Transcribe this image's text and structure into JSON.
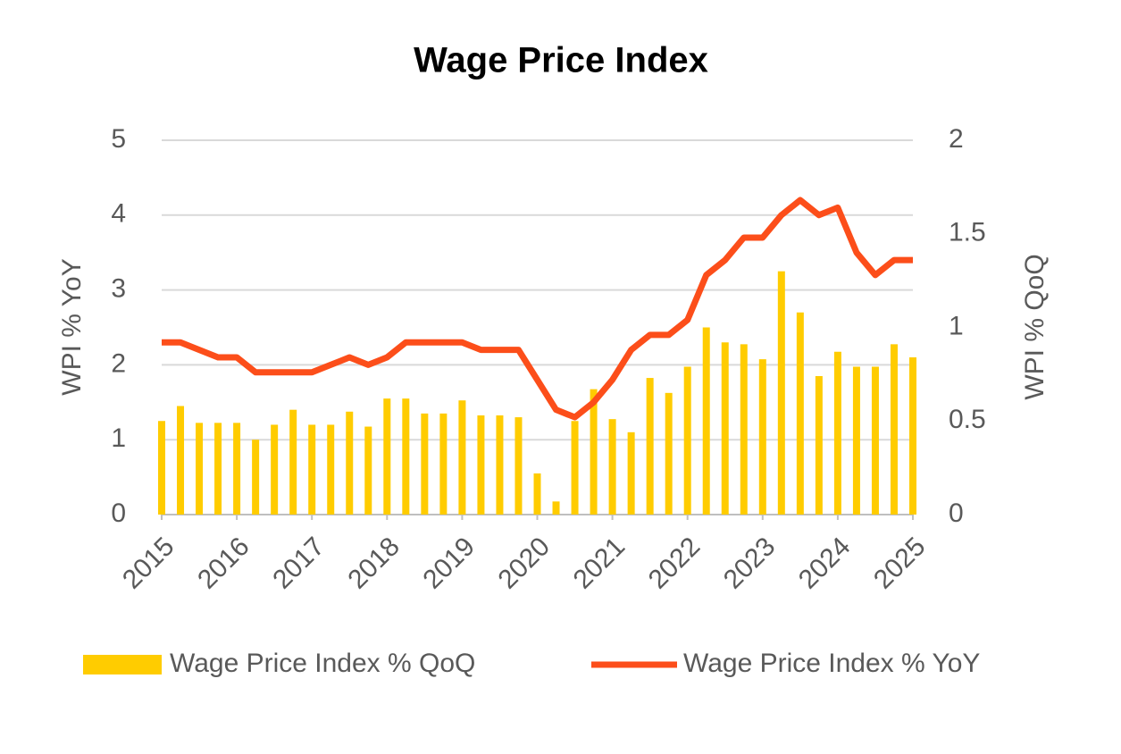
{
  "chart_data": {
    "type": "combo",
    "title": "Wage Price Index",
    "categories": [
      "2015",
      null,
      null,
      null,
      "2016",
      null,
      null,
      null,
      "2017",
      null,
      null,
      null,
      "2018",
      null,
      null,
      null,
      "2019",
      null,
      null,
      null,
      "2020",
      null,
      null,
      null,
      "2021",
      null,
      null,
      null,
      "2022",
      null,
      null,
      null,
      "2023",
      null,
      null,
      null,
      "2024",
      null,
      null,
      null,
      "2025"
    ],
    "y_label": "WPI % YoY",
    "y2_label": "WPI % QoQ",
    "ylim": [
      0,
      5
    ],
    "yticks": [
      0,
      1,
      2,
      3,
      4,
      5
    ],
    "y2lim": [
      0,
      2
    ],
    "y2ticks": [
      0,
      0.5,
      1,
      1.5,
      2
    ],
    "grid": true,
    "legend": "bottom",
    "series": [
      {
        "name": "Wage Price Index % QoQ",
        "type": "bar",
        "axis": "y2",
        "color": "#ffcc00",
        "values": [
          0.5,
          0.58,
          0.49,
          0.49,
          0.49,
          0.4,
          0.48,
          0.56,
          0.48,
          0.48,
          0.55,
          0.47,
          0.62,
          0.62,
          0.54,
          0.54,
          0.61,
          0.53,
          0.53,
          0.52,
          0.22,
          0.07,
          0.5,
          0.67,
          0.51,
          0.44,
          0.73,
          0.65,
          0.79,
          1.0,
          0.92,
          0.91,
          0.83,
          1.3,
          1.08,
          0.74,
          0.87,
          0.79,
          0.79,
          0.91,
          0.84
        ]
      },
      {
        "name": "Wage Price Index % YoY",
        "type": "line",
        "color": "#fc4e1a",
        "values": [
          2.3,
          2.3,
          2.2,
          2.1,
          2.1,
          1.9,
          1.9,
          1.9,
          1.9,
          2.0,
          2.1,
          2.0,
          2.1,
          2.3,
          2.3,
          2.3,
          2.3,
          2.2,
          2.2,
          2.2,
          1.8,
          1.4,
          1.3,
          1.5,
          1.8,
          2.2,
          2.4,
          2.4,
          2.6,
          3.2,
          3.4,
          3.7,
          3.7,
          4.0,
          4.2,
          4.0,
          4.1,
          3.5,
          3.2,
          3.4,
          3.4
        ]
      }
    ]
  }
}
